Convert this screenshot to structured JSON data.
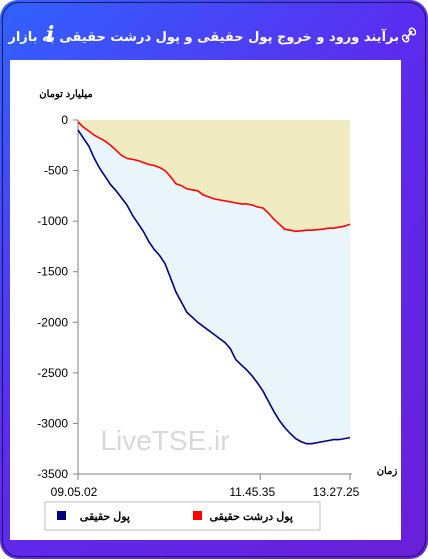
{
  "title": "برآیند ورود و خروج پول حقیقی و پول درشت حقیقی به بازار",
  "icons": {
    "info": "info-icon",
    "link": "link-icon"
  },
  "colors": {
    "real_money": "#000080",
    "big_real_money": "#ff0000",
    "upper_fill": "#f0ebc0",
    "lower_fill": "#e9f4fb"
  },
  "watermark": "LiveTSE.ir",
  "chart_data": {
    "type": "area",
    "ylabel": "میلیارد تومان",
    "xlabel": "زمان",
    "ylim": [
      -3500,
      0
    ],
    "yticks": [
      0,
      -500,
      -1000,
      -1500,
      -2000,
      -2500,
      -3000,
      -3500
    ],
    "xtick_labels": [
      "09.05.02",
      "11.45.35",
      "13.27.25"
    ],
    "grid": false,
    "legend_position": "bottom",
    "series": [
      {
        "name": "پول حقیقی",
        "color": "#000080",
        "x": [
          0,
          2,
          4,
          6,
          8,
          10,
          12,
          14,
          16,
          18,
          20,
          22,
          24,
          26,
          28,
          30,
          32,
          34,
          36,
          38,
          40,
          42,
          44,
          46,
          48,
          50,
          52,
          54,
          56,
          58,
          60,
          62,
          64,
          66,
          68,
          70,
          72,
          74,
          76,
          78,
          80,
          82,
          84,
          86,
          88,
          90,
          92,
          94,
          96,
          98,
          100
        ],
        "values": [
          -100,
          -180,
          -260,
          -380,
          -480,
          -560,
          -640,
          -700,
          -770,
          -840,
          -940,
          -1020,
          -1100,
          -1200,
          -1280,
          -1340,
          -1420,
          -1560,
          -1700,
          -1800,
          -1900,
          -1950,
          -2000,
          -2040,
          -2080,
          -2120,
          -2160,
          -2200,
          -2260,
          -2370,
          -2420,
          -2470,
          -2530,
          -2600,
          -2680,
          -2780,
          -2880,
          -2970,
          -3040,
          -3100,
          -3150,
          -3180,
          -3200,
          -3200,
          -3190,
          -3180,
          -3170,
          -3160,
          -3160,
          -3150,
          -3140
        ]
      },
      {
        "name": "پول درشت حقیقی",
        "color": "#ff0000",
        "x": [
          0,
          2,
          4,
          6,
          8,
          10,
          12,
          14,
          16,
          18,
          20,
          22,
          24,
          26,
          28,
          30,
          32,
          34,
          36,
          38,
          40,
          42,
          44,
          46,
          48,
          50,
          52,
          54,
          56,
          58,
          60,
          62,
          64,
          66,
          68,
          70,
          72,
          74,
          76,
          78,
          80,
          82,
          84,
          86,
          88,
          90,
          92,
          94,
          96,
          98,
          100
        ],
        "values": [
          -20,
          -70,
          -110,
          -150,
          -180,
          -210,
          -250,
          -300,
          -350,
          -380,
          -390,
          -400,
          -420,
          -440,
          -450,
          -470,
          -500,
          -560,
          -630,
          -650,
          -680,
          -690,
          -700,
          -740,
          -760,
          -780,
          -790,
          -800,
          -810,
          -820,
          -830,
          -830,
          -840,
          -860,
          -870,
          -920,
          -980,
          -1030,
          -1080,
          -1090,
          -1100,
          -1095,
          -1090,
          -1090,
          -1085,
          -1080,
          -1070,
          -1070,
          -1060,
          -1050,
          -1030
        ]
      }
    ]
  }
}
